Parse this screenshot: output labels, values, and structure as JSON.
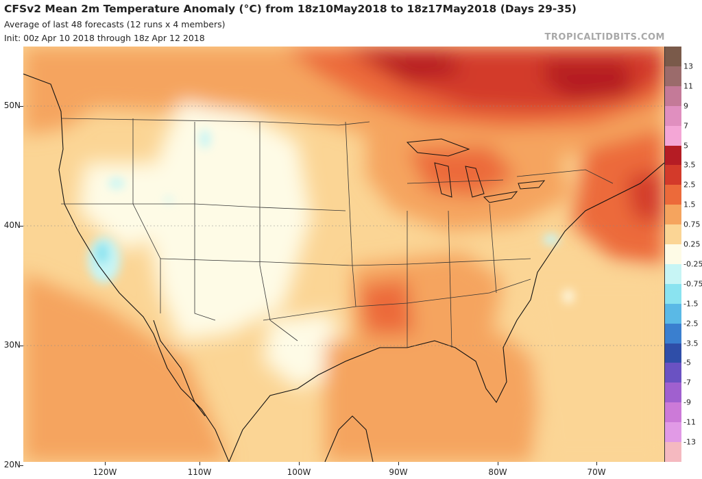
{
  "header": {
    "title": "CFSv2 Mean 2m Temperature Anomaly (°C) from 18z10May2018 to 18z17May2018 (Days 29-35)",
    "subtitle": "Average of last 48 forecasts (12 runs x 4 members)",
    "init": "Init: 00z Apr 10 2018 through 18z Apr 12 2018",
    "credit": "TROPICALTIDBITS.COM"
  },
  "axes": {
    "lat_labels": [
      "50N",
      "40N",
      "30N",
      "20N"
    ],
    "lon_labels": [
      "120W",
      "110W",
      "100W",
      "90W",
      "80W",
      "70W"
    ]
  },
  "colorbar": {
    "labels": [
      "13",
      "11",
      "9",
      "7",
      "5",
      "3.5",
      "2.5",
      "1.5",
      "0.75",
      "0.25",
      "-0.25",
      "-0.75",
      "-1.5",
      "-2.5",
      "-3.5",
      "-5",
      "-7",
      "-9",
      "-11",
      "-13"
    ],
    "colors": [
      "#7a5a4a",
      "#9b6b6b",
      "#c47a98",
      "#e08fbf",
      "#f4a6d6",
      "#b51c24",
      "#d33a2a",
      "#ec6a3a",
      "#f5a45e",
      "#fbd595",
      "#fefbe6",
      "#c7f5f5",
      "#8ae3f0",
      "#5ab9e6",
      "#3a7fcf",
      "#2f4ea8",
      "#6a52c2",
      "#a060cf",
      "#cc7ad8",
      "#e19ae6",
      "#f5b9c0"
    ]
  }
}
